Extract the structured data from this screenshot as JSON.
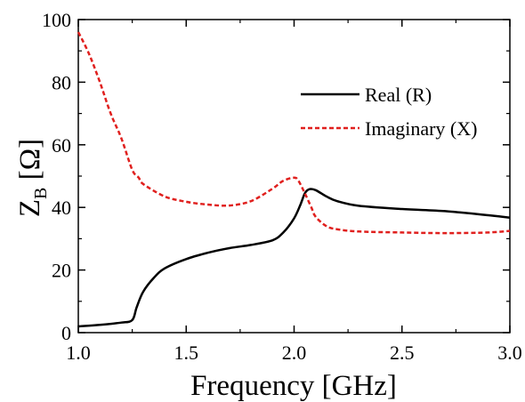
{
  "chart_data": {
    "type": "line",
    "xlabel": "Frequency [GHz]",
    "ylabel_main": "Z",
    "ylabel_sub": "B",
    "ylabel_unit": "[Ω]",
    "xlim": [
      1.0,
      3.0
    ],
    "ylim": [
      0,
      100
    ],
    "xticks": [
      "1.0",
      "1.5",
      "2.0",
      "2.5",
      "3.0"
    ],
    "yticks": [
      "0",
      "20",
      "40",
      "60",
      "80",
      "100"
    ],
    "grid": false,
    "legend_position": "top-right",
    "series": [
      {
        "name": "Real (R)",
        "color": "#000000",
        "style": "solid",
        "x": [
          1.0,
          1.1,
          1.2,
          1.25,
          1.27,
          1.3,
          1.35,
          1.4,
          1.5,
          1.6,
          1.7,
          1.8,
          1.9,
          1.95,
          2.0,
          2.03,
          2.05,
          2.07,
          2.1,
          2.15,
          2.2,
          2.3,
          2.5,
          2.7,
          2.9,
          3.0
        ],
        "y": [
          2.0,
          2.5,
          3.2,
          4.0,
          8.0,
          13.0,
          17.5,
          20.5,
          23.5,
          25.5,
          27.0,
          28.0,
          29.5,
          32.0,
          36.5,
          41.0,
          44.5,
          45.8,
          45.5,
          43.5,
          42.0,
          40.5,
          39.5,
          38.8,
          37.5,
          36.7
        ]
      },
      {
        "name": "Imaginary (X)",
        "color": "#e0201e",
        "style": "dashed",
        "x": [
          1.0,
          1.05,
          1.1,
          1.15,
          1.2,
          1.25,
          1.28,
          1.3,
          1.4,
          1.5,
          1.6,
          1.7,
          1.8,
          1.9,
          1.95,
          2.0,
          2.02,
          2.05,
          2.08,
          2.1,
          2.15,
          2.2,
          2.3,
          2.5,
          2.7,
          2.9,
          3.0
        ],
        "y": [
          96.0,
          89.0,
          80.0,
          70.0,
          62.0,
          52.0,
          49.5,
          47.5,
          43.5,
          41.8,
          40.9,
          40.6,
          42.0,
          46.0,
          48.5,
          49.5,
          48.5,
          44.5,
          40.0,
          37.0,
          34.0,
          33.0,
          32.3,
          32.0,
          31.8,
          32.0,
          32.5
        ]
      }
    ]
  }
}
